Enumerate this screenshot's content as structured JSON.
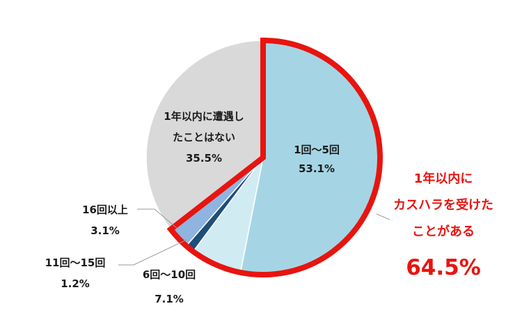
{
  "chart_data": {
    "type": "pie",
    "title": "",
    "slices": [
      {
        "label": "1回～5回",
        "value": 53.1,
        "display": "53.1%",
        "color": "#a5d5e4"
      },
      {
        "label": "6回～10回",
        "value": 7.1,
        "display": "7.1%",
        "color": "#d1ebf2"
      },
      {
        "label": "11回～15回",
        "value": 1.2,
        "display": "1.2%",
        "color": "#1f4e79"
      },
      {
        "label": "16回以上",
        "value": 3.1,
        "display": "3.1%",
        "color": "#8fb4e0"
      },
      {
        "label_lines": [
          "1年以内に遭遇し",
          "たことはない"
        ],
        "value": 35.5,
        "display": "35.5%",
        "color": "#d9d9d9"
      }
    ],
    "highlight": {
      "lines": [
        "1年以内に",
        "カスハラを受けた",
        "ことがある"
      ],
      "total": "64.5%",
      "color": "#e8140f"
    }
  }
}
